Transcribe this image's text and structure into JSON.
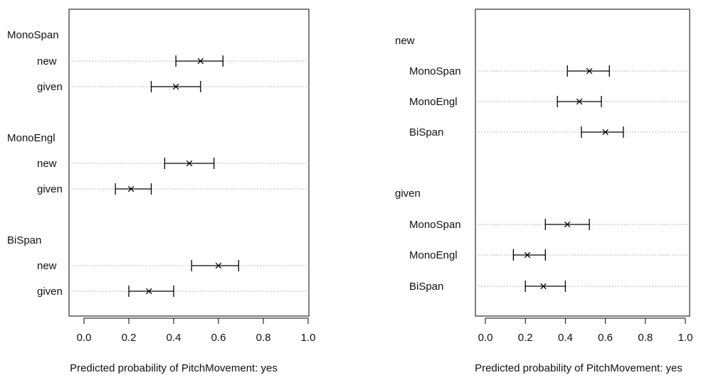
{
  "charts": [
    {
      "xlabel": "Predicted probability of PitchMovement: yes",
      "xlim": [
        0,
        1
      ],
      "ticks": [
        "0.0",
        "0.2",
        "0.4",
        "0.6",
        "0.8",
        "1.0"
      ],
      "tick_values": [
        0,
        0.2,
        0.4,
        0.6,
        0.8,
        1.0
      ]
    },
    {
      "xlabel": "Predicted probability of PitchMovement: yes",
      "xlim": [
        0,
        1
      ],
      "ticks": [
        "0.0",
        "0.2",
        "0.4",
        "0.6",
        "0.8",
        "1.0"
      ],
      "tick_values": [
        0,
        0.2,
        0.4,
        0.6,
        0.8,
        1.0
      ]
    }
  ],
  "chart_data": [
    {
      "type": "dotplot",
      "xlabel": "Predicted probability of PitchMovement: yes",
      "xlim": [
        0,
        1
      ],
      "grid": false,
      "marker": "x",
      "groups": [
        {
          "name": "MonoSpan",
          "rows": [
            {
              "label": "new",
              "value": 0.52,
              "lower": 0.41,
              "upper": 0.62
            },
            {
              "label": "given",
              "value": 0.41,
              "lower": 0.3,
              "upper": 0.52
            }
          ]
        },
        {
          "name": "MonoEngl",
          "rows": [
            {
              "label": "new",
              "value": 0.47,
              "lower": 0.36,
              "upper": 0.58
            },
            {
              "label": "given",
              "value": 0.21,
              "lower": 0.14,
              "upper": 0.3
            }
          ]
        },
        {
          "name": "BiSpan",
          "rows": [
            {
              "label": "new",
              "value": 0.6,
              "lower": 0.48,
              "upper": 0.69
            },
            {
              "label": "given",
              "value": 0.29,
              "lower": 0.2,
              "upper": 0.4
            }
          ]
        }
      ]
    },
    {
      "type": "dotplot",
      "xlabel": "Predicted probability of PitchMovement: yes",
      "xlim": [
        0,
        1
      ],
      "grid": false,
      "marker": "x",
      "groups": [
        {
          "name": "new",
          "rows": [
            {
              "label": "MonoSpan",
              "value": 0.52,
              "lower": 0.41,
              "upper": 0.62
            },
            {
              "label": "MonoEngl",
              "value": 0.47,
              "lower": 0.36,
              "upper": 0.58
            },
            {
              "label": "BiSpan",
              "value": 0.6,
              "lower": 0.48,
              "upper": 0.69
            }
          ]
        },
        {
          "name": "given",
          "rows": [
            {
              "label": "MonoSpan",
              "value": 0.41,
              "lower": 0.3,
              "upper": 0.52
            },
            {
              "label": "MonoEngl",
              "value": 0.21,
              "lower": 0.14,
              "upper": 0.3
            },
            {
              "label": "BiSpan",
              "value": 0.29,
              "lower": 0.2,
              "upper": 0.4
            }
          ]
        }
      ]
    }
  ]
}
